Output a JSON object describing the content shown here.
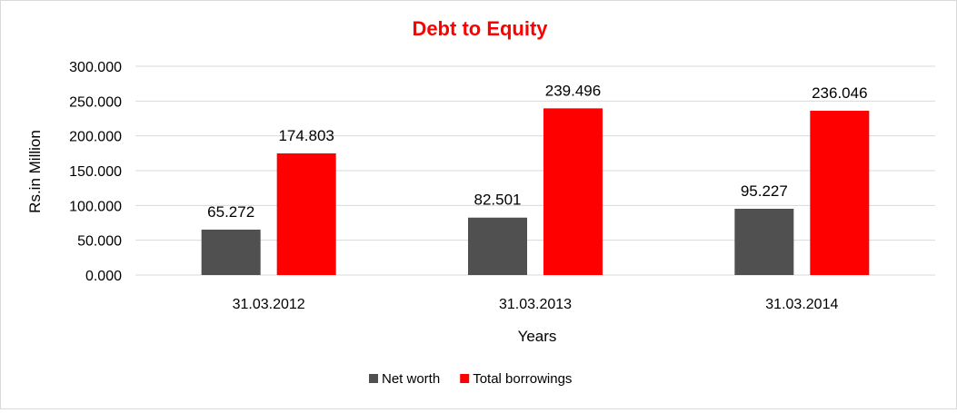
{
  "chart_data": {
    "type": "bar",
    "title": "Debt to Equity",
    "xlabel": "Years",
    "ylabel": "Rs.in Million",
    "categories": [
      "31.03.2012",
      "31.03.2013",
      "31.03.2014"
    ],
    "series": [
      {
        "name": "Net worth",
        "values": [
          65.272,
          82.501,
          95.227
        ],
        "labels": [
          "65.272",
          "82.501",
          "95.227"
        ],
        "color": "#505050"
      },
      {
        "name": "Total borrowings",
        "values": [
          174.803,
          239.496,
          236.046
        ],
        "labels": [
          "174.803",
          "239.496",
          "236.046"
        ],
        "color": "#ff0000"
      }
    ],
    "ylim": [
      0,
      300
    ],
    "yticks": [
      0,
      50,
      100,
      150,
      200,
      250,
      300
    ],
    "ytick_labels": [
      "0.000",
      "50.000",
      "100.000",
      "150.000",
      "200.000",
      "250.000",
      "300.000"
    ],
    "grid": true,
    "legend_position": "bottom",
    "title_color": "#ff0000",
    "gridline_color": "#d9d9d9"
  }
}
